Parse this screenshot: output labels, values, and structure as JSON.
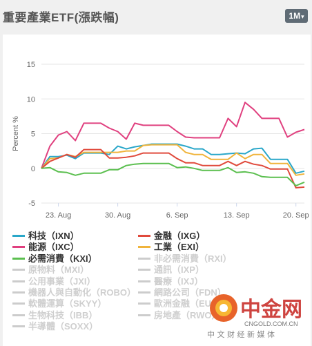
{
  "header": {
    "title": "重要產業ETF(漲跌幅)",
    "range_label": "1M",
    "range_caret": "▾"
  },
  "legend": [
    {
      "label": "科技（IXN）",
      "color": "#2aa7c9",
      "active": true
    },
    {
      "label": "金融（IXG）",
      "color": "#e04a3c",
      "active": true
    },
    {
      "label": "能源（IXC）",
      "color": "#e0407f",
      "active": true
    },
    {
      "label": "工業（EXI）",
      "color": "#f0b43c",
      "active": true
    },
    {
      "label": "必需消費（KXI）",
      "color": "#5bbf4f",
      "active": true
    },
    {
      "label": "非必需消費（RXI）",
      "color": "#cccccc",
      "active": false
    },
    {
      "label": "原物料（MXI）",
      "color": "#cccccc",
      "active": false
    },
    {
      "label": "通訊（IXP）",
      "color": "#cccccc",
      "active": false
    },
    {
      "label": "公用事業（JXI）",
      "color": "#cccccc",
      "active": false
    },
    {
      "label": "醫療（IXJ）",
      "color": "#cccccc",
      "active": false
    },
    {
      "label": "機器人與自動化（ROBO）",
      "color": "#cccccc",
      "active": false
    },
    {
      "label": "網路公司（FDN）",
      "color": "#cccccc",
      "active": false
    },
    {
      "label": "軟體運算（SKYY）",
      "color": "#cccccc",
      "active": false
    },
    {
      "label": "歐洲金融（EUFN）",
      "color": "#cccccc",
      "active": false
    },
    {
      "label": "生物科技（IBB）",
      "color": "#cccccc",
      "active": false
    },
    {
      "label": "房地產（RWO）",
      "color": "#cccccc",
      "active": false
    },
    {
      "label": "半導體（SOXX）",
      "color": "#cccccc",
      "active": false
    }
  ],
  "watermark": {
    "name": "中金网",
    "domain": "CNGOLD.COM.CN",
    "slogan": "中 文 财 经 新 媒 体"
  },
  "chart_data": {
    "type": "line",
    "title": "",
    "xlabel": "",
    "ylabel": "Percent %",
    "ylim": [
      -5,
      15
    ],
    "yticks": [
      15,
      10,
      5,
      0,
      -5
    ],
    "x": [
      "Aug 21",
      "Aug 22",
      "Aug 23",
      "Aug 24",
      "Aug 25",
      "Aug 26",
      "Aug 27",
      "Aug 28",
      "Aug 29",
      "Aug 30",
      "Aug 31",
      "Sep 1",
      "Sep 2",
      "Sep 3",
      "Sep 4",
      "Sep 5",
      "Sep 6",
      "Sep 7",
      "Sep 8",
      "Sep 9",
      "Sep 10",
      "Sep 11",
      "Sep 12",
      "Sep 13",
      "Sep 14",
      "Sep 15",
      "Sep 16",
      "Sep 17",
      "Sep 18",
      "Sep 19",
      "Sep 20",
      "Sep 21"
    ],
    "xticks": [
      {
        "label": "23. Aug",
        "x": "Aug 23"
      },
      {
        "label": "30. Aug",
        "x": "Aug 30"
      },
      {
        "label": "6. Sep",
        "x": "Sep 6"
      },
      {
        "label": "13. Sep",
        "x": "Sep 13"
      },
      {
        "label": "20. Sep",
        "x": "Sep 20"
      }
    ],
    "grid": true,
    "series": [
      {
        "name": "能源（IXC）",
        "color": "#e0407f",
        "values": [
          0,
          3.2,
          4.8,
          5.3,
          4.0,
          6.5,
          6.5,
          6.5,
          5.8,
          5.3,
          4.2,
          6.5,
          6.2,
          6.2,
          6.2,
          6.2,
          5.3,
          4.5,
          4.4,
          4.4,
          4.4,
          4.4,
          7.2,
          6.0,
          9.5,
          8.5,
          7.2,
          7.2,
          7.2,
          4.5,
          5.2,
          5.6
        ]
      },
      {
        "name": "科技（IXN）",
        "color": "#2aa7c9",
        "values": [
          0,
          1.7,
          1.7,
          1.9,
          1.4,
          2.2,
          2.2,
          2.2,
          2.0,
          3.2,
          2.8,
          3.1,
          3.3,
          3.5,
          3.5,
          3.5,
          3.5,
          3.2,
          2.8,
          2.8,
          2.0,
          2.0,
          2.1,
          2.2,
          2.1,
          2.8,
          2.9,
          1.3,
          1.3,
          1.3,
          -0.7,
          -0.4
        ]
      },
      {
        "name": "工業（EXI）",
        "color": "#f0b43c",
        "values": [
          0,
          1.4,
          1.5,
          2.0,
          1.7,
          2.3,
          2.3,
          2.3,
          2.3,
          2.3,
          2.5,
          2.5,
          3.3,
          3.4,
          3.4,
          3.4,
          3.4,
          2.3,
          2.0,
          2.0,
          1.3,
          1.3,
          1.3,
          2.2,
          1.4,
          2.0,
          2.0,
          0.7,
          0.7,
          0.7,
          -1.0,
          -0.8
        ]
      },
      {
        "name": "金融（IXG）",
        "color": "#e04a3c",
        "values": [
          0,
          1.0,
          1.5,
          2.0,
          1.6,
          2.7,
          2.7,
          2.7,
          1.5,
          1.5,
          1.6,
          1.8,
          2.2,
          2.2,
          2.2,
          2.2,
          1.4,
          0.8,
          0.8,
          0.4,
          0.4,
          0.4,
          1.0,
          0.4,
          1.0,
          0.6,
          0.4,
          -0.1,
          -0.1,
          -0.1,
          -2.8,
          -2.7
        ]
      },
      {
        "name": "必需消費（KXI）",
        "color": "#5bbf4f",
        "values": [
          0,
          0.1,
          -0.5,
          -0.6,
          -1.0,
          -0.7,
          -0.7,
          -0.7,
          -0.2,
          -0.2,
          0.4,
          0.6,
          0.7,
          0.7,
          0.7,
          0.7,
          0.1,
          0.2,
          0.0,
          -0.3,
          -0.3,
          -0.3,
          0.1,
          -0.6,
          -0.5,
          -0.7,
          -1.2,
          -1.3,
          -1.3,
          -1.3,
          -2.5,
          -2.0
        ]
      }
    ]
  }
}
